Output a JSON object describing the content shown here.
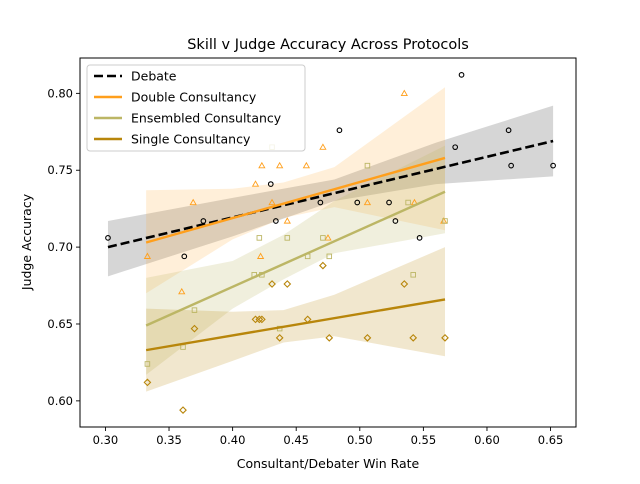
{
  "chart_data": {
    "type": "scatter",
    "title": "Skill v Judge Accuracy Across Protocols",
    "xlabel": "Consultant/Debater Win Rate",
    "ylabel": "Judge Accuracy",
    "xlim": [
      0.28,
      0.67
    ],
    "ylim": [
      0.583,
      0.823
    ],
    "xticks": [
      0.3,
      0.35,
      0.4,
      0.45,
      0.5,
      0.55,
      0.6,
      0.65
    ],
    "xtick_labels": [
      "0.30",
      "0.35",
      "0.40",
      "0.45",
      "0.50",
      "0.55",
      "0.60",
      "0.65"
    ],
    "yticks": [
      0.6,
      0.65,
      0.7,
      0.75,
      0.8
    ],
    "ytick_labels": [
      "0.60",
      "0.65",
      "0.70",
      "0.75",
      "0.80"
    ],
    "grid": false,
    "legend_position": "top-left",
    "series": [
      {
        "name": "Debate",
        "color": "#000000",
        "marker": "circle",
        "line_style": "dashed",
        "fit": {
          "x": [
            0.302,
            0.652
          ],
          "y": [
            0.7,
            0.769
          ]
        },
        "band": {
          "x": [
            0.302,
            0.4,
            0.48,
            0.56,
            0.652
          ],
          "lower": [
            0.681,
            0.707,
            0.73,
            0.741,
            0.746
          ],
          "upper": [
            0.717,
            0.732,
            0.744,
            0.768,
            0.792
          ]
        },
        "points": [
          [
            0.302,
            0.706
          ],
          [
            0.362,
            0.694
          ],
          [
            0.377,
            0.717
          ],
          [
            0.43,
            0.741
          ],
          [
            0.434,
            0.717
          ],
          [
            0.469,
            0.729
          ],
          [
            0.484,
            0.776
          ],
          [
            0.498,
            0.729
          ],
          [
            0.523,
            0.729
          ],
          [
            0.528,
            0.717
          ],
          [
            0.547,
            0.706
          ],
          [
            0.575,
            0.765
          ],
          [
            0.58,
            0.812
          ],
          [
            0.617,
            0.776
          ],
          [
            0.619,
            0.753
          ],
          [
            0.652,
            0.753
          ]
        ]
      },
      {
        "name": "Double Consultancy",
        "color": "#ff9f1c",
        "marker": "triangle",
        "line_style": "solid",
        "fit": {
          "x": [
            0.332,
            0.567
          ],
          "y": [
            0.703,
            0.758
          ]
        },
        "band": {
          "x": [
            0.332,
            0.4,
            0.44,
            0.48,
            0.567
          ],
          "lower": [
            0.67,
            0.705,
            0.719,
            0.726,
            0.711
          ],
          "upper": [
            0.737,
            0.738,
            0.742,
            0.752,
            0.804
          ]
        },
        "points": [
          [
            0.333,
            0.694
          ],
          [
            0.36,
            0.671
          ],
          [
            0.369,
            0.729
          ],
          [
            0.418,
            0.741
          ],
          [
            0.422,
            0.694
          ],
          [
            0.423,
            0.753
          ],
          [
            0.431,
            0.729
          ],
          [
            0.437,
            0.753
          ],
          [
            0.443,
            0.717
          ],
          [
            0.458,
            0.753
          ],
          [
            0.471,
            0.765
          ],
          [
            0.475,
            0.706
          ],
          [
            0.506,
            0.729
          ],
          [
            0.535,
            0.8
          ],
          [
            0.543,
            0.729
          ],
          [
            0.566,
            0.717
          ]
        ]
      },
      {
        "name": "Ensembled Consultancy",
        "color": "#bcb665",
        "marker": "square",
        "line_style": "solid",
        "fit": {
          "x": [
            0.332,
            0.567
          ],
          "y": [
            0.649,
            0.736
          ]
        },
        "band": {
          "x": [
            0.332,
            0.4,
            0.44,
            0.48,
            0.567
          ],
          "lower": [
            0.617,
            0.66,
            0.679,
            0.696,
            0.709
          ],
          "upper": [
            0.68,
            0.691,
            0.708,
            0.73,
            0.766
          ]
        },
        "points": [
          [
            0.333,
            0.624
          ],
          [
            0.361,
            0.635
          ],
          [
            0.37,
            0.659
          ],
          [
            0.417,
            0.682
          ],
          [
            0.421,
            0.706
          ],
          [
            0.423,
            0.682
          ],
          [
            0.431,
            0.765
          ],
          [
            0.437,
            0.647
          ],
          [
            0.443,
            0.706
          ],
          [
            0.459,
            0.694
          ],
          [
            0.471,
            0.706
          ],
          [
            0.476,
            0.694
          ],
          [
            0.506,
            0.753
          ],
          [
            0.538,
            0.729
          ],
          [
            0.542,
            0.682
          ],
          [
            0.567,
            0.717
          ]
        ]
      },
      {
        "name": "Single Consultancy",
        "color": "#b8860b",
        "marker": "diamond",
        "line_style": "solid",
        "fit": {
          "x": [
            0.332,
            0.567
          ],
          "y": [
            0.633,
            0.666
          ]
        },
        "band": {
          "x": [
            0.332,
            0.4,
            0.44,
            0.48,
            0.567
          ],
          "lower": [
            0.606,
            0.626,
            0.638,
            0.642,
            0.629
          ],
          "upper": [
            0.66,
            0.658,
            0.659,
            0.669,
            0.7
          ]
        },
        "points": [
          [
            0.333,
            0.612
          ],
          [
            0.361,
            0.594
          ],
          [
            0.37,
            0.647
          ],
          [
            0.418,
            0.653
          ],
          [
            0.421,
            0.653
          ],
          [
            0.423,
            0.653
          ],
          [
            0.431,
            0.676
          ],
          [
            0.437,
            0.641
          ],
          [
            0.443,
            0.676
          ],
          [
            0.459,
            0.653
          ],
          [
            0.471,
            0.688
          ],
          [
            0.476,
            0.641
          ],
          [
            0.506,
            0.641
          ],
          [
            0.535,
            0.676
          ],
          [
            0.542,
            0.641
          ],
          [
            0.567,
            0.641
          ]
        ]
      }
    ]
  }
}
